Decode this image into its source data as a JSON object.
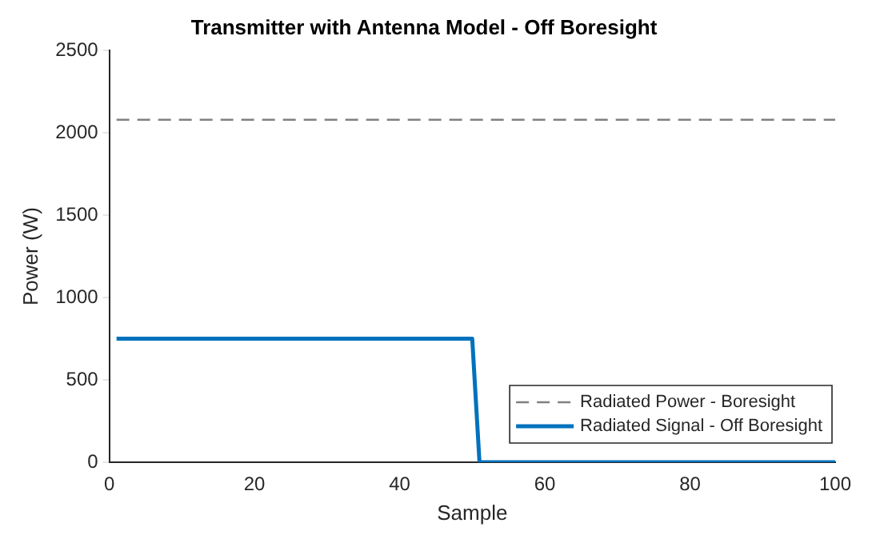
{
  "chart_data": {
    "type": "line",
    "title": "Transmitter with Antenna Model - Off Boresight",
    "xlabel": "Sample",
    "ylabel": "Power (W)",
    "xlim": [
      0,
      100
    ],
    "xticks": [
      0,
      20,
      40,
      60,
      80,
      100
    ],
    "ylim": [
      0,
      2500
    ],
    "yticks": [
      0,
      500,
      1000,
      1500,
      2000,
      2500
    ],
    "grid": false,
    "legend": "bottom right",
    "marker": "none",
    "series": [
      {
        "name": "Radiated Power - Boresight",
        "color": "#808080",
        "line_style": "dashed",
        "x": [
          1,
          100
        ],
        "values": [
          2080,
          2080
        ]
      },
      {
        "name": "Radiated Signal - Off Boresight",
        "color": "#0072bd",
        "line_style": "solid",
        "x": [
          1,
          50,
          51,
          100
        ],
        "values": [
          750,
          750,
          0,
          0
        ]
      }
    ]
  }
}
